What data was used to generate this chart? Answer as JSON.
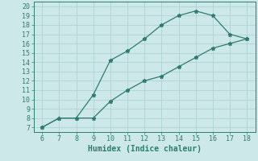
{
  "line1_x": [
    6,
    7,
    8,
    9,
    10,
    11,
    12,
    13,
    14,
    15,
    16,
    17,
    18
  ],
  "line1_y": [
    7,
    8,
    8,
    10.5,
    14.2,
    15.2,
    16.5,
    18,
    19,
    19.5,
    19,
    17,
    16.5
  ],
  "line2_x": [
    6,
    7,
    8,
    9,
    10,
    11,
    12,
    13,
    14,
    15,
    16,
    17,
    18
  ],
  "line2_y": [
    7,
    8,
    8,
    8,
    9.8,
    11,
    12,
    12.5,
    13.5,
    14.5,
    15.5,
    16,
    16.5
  ],
  "color": "#2e7d6e",
  "bg_color": "#cce8e8",
  "grid_color": "#aacece",
  "xlabel": "Humidex (Indice chaleur)",
  "xlim": [
    5.5,
    18.5
  ],
  "ylim": [
    6.5,
    20.5
  ],
  "xticks": [
    6,
    7,
    8,
    9,
    10,
    11,
    12,
    13,
    14,
    15,
    16,
    17,
    18
  ],
  "yticks": [
    7,
    8,
    9,
    10,
    11,
    12,
    13,
    14,
    15,
    16,
    17,
    18,
    19,
    20
  ],
  "marker": "*",
  "markersize": 3.5,
  "linewidth": 0.9,
  "xlabel_fontsize": 7,
  "tick_fontsize": 6
}
